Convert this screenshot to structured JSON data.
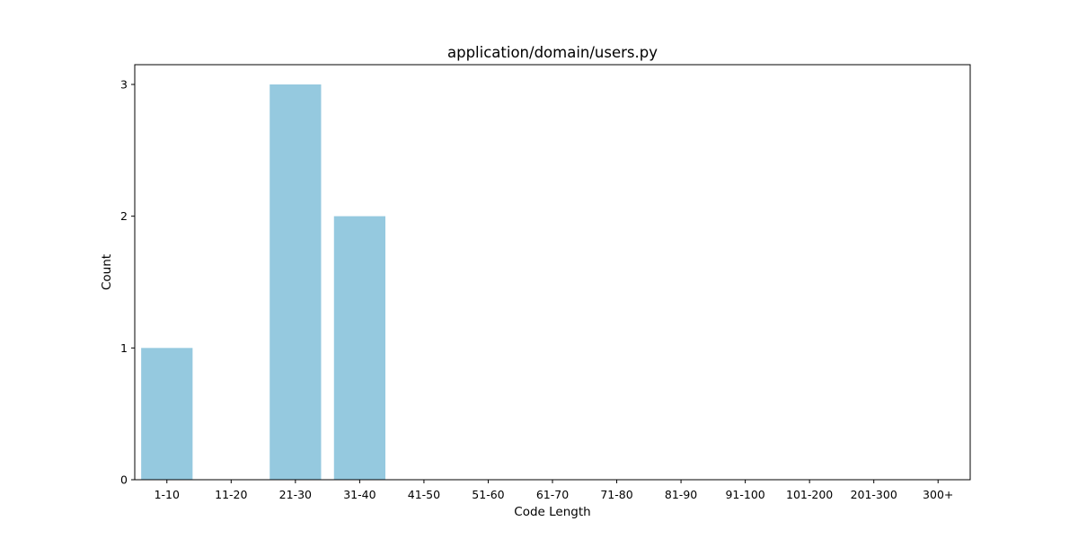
{
  "chart_data": {
    "type": "bar",
    "title": "application/domain/users.py",
    "xlabel": "Code Length",
    "ylabel": "Count",
    "categories": [
      "1-10",
      "11-20",
      "21-30",
      "31-40",
      "41-50",
      "51-60",
      "61-70",
      "71-80",
      "81-90",
      "91-100",
      "101-200",
      "201-300",
      "300+"
    ],
    "values": [
      1,
      0,
      3,
      2,
      0,
      0,
      0,
      0,
      0,
      0,
      0,
      0,
      0
    ],
    "ylim": [
      0,
      3.15
    ],
    "yticks": [
      0,
      1,
      2,
      3
    ],
    "bar_color": "#95c9df",
    "grid": false,
    "legend": "none"
  }
}
